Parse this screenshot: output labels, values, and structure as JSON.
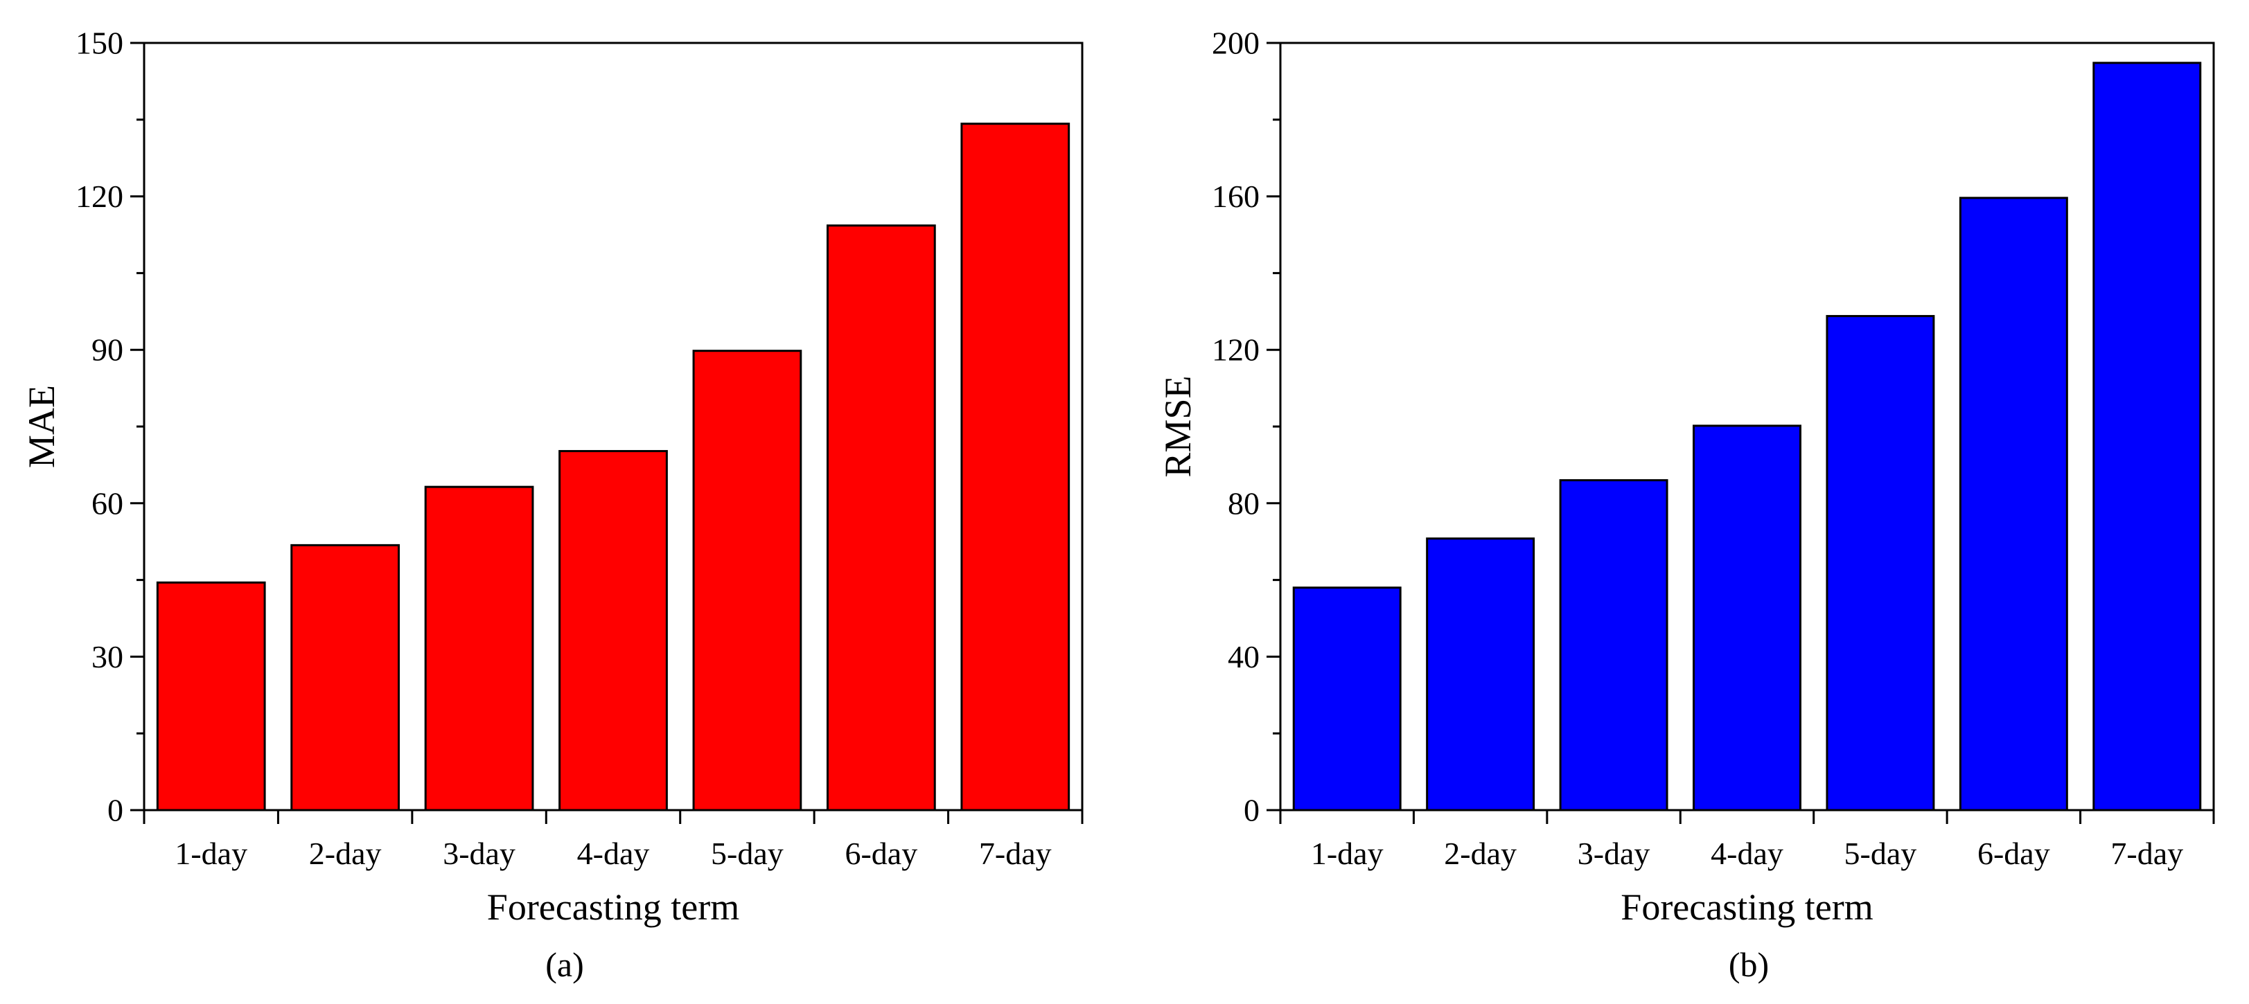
{
  "chart_data": [
    {
      "type": "bar",
      "panel_label": "(a)",
      "categories": [
        "1-day",
        "2-day",
        "3-day",
        "4-day",
        "5-day",
        "6-day",
        "7-day"
      ],
      "values": [
        44.5,
        51.8,
        63.2,
        70.2,
        89.8,
        114.3,
        134.2
      ],
      "xlabel": "Forecasting term",
      "ylabel": "MAE",
      "ylim": [
        0,
        150
      ],
      "yticks": [
        0,
        30,
        60,
        90,
        120,
        150
      ],
      "yticks_labels": [
        "0",
        "30",
        "60",
        "90",
        "120",
        "150"
      ],
      "bar_color": "#ff0000",
      "grid": false,
      "legend": "none"
    },
    {
      "type": "bar",
      "panel_label": "(b)",
      "categories": [
        "1-day",
        "2-day",
        "3-day",
        "4-day",
        "5-day",
        "6-day",
        "7-day"
      ],
      "values": [
        58.0,
        70.8,
        86.0,
        100.2,
        128.8,
        159.6,
        194.8
      ],
      "xlabel": "Forecasting term",
      "ylabel": "RMSE",
      "ylim": [
        0,
        200
      ],
      "yticks": [
        0,
        40,
        80,
        120,
        160,
        200
      ],
      "yticks_labels": [
        "0",
        "40",
        "80",
        "120",
        "160",
        "200"
      ],
      "bar_color": "#0000ff",
      "grid": false,
      "legend": "none"
    }
  ]
}
